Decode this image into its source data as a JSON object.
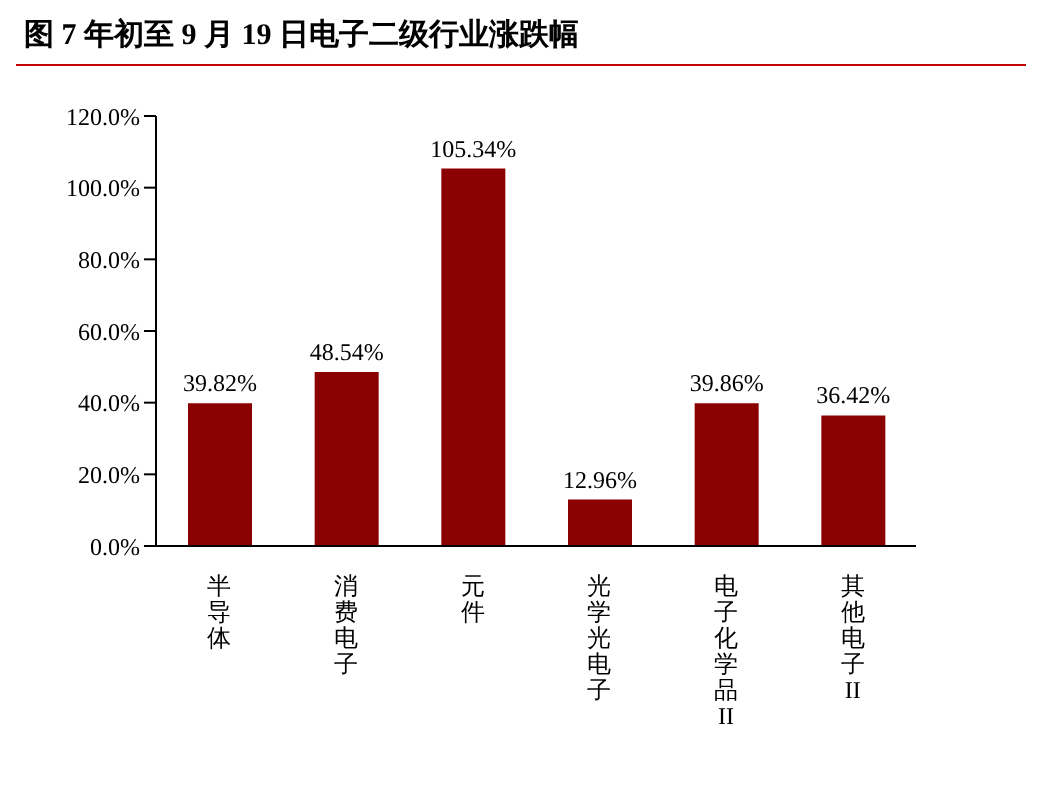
{
  "chart_data": {
    "type": "bar",
    "title": "图 7 年初至 9 月 19 日电子二级行业涨跌幅",
    "categories": [
      "半导体",
      "消费电子",
      "元件",
      "光学光电子",
      "电子化学品II",
      "其他电子II"
    ],
    "values": [
      39.82,
      48.54,
      105.34,
      12.96,
      39.86,
      36.42
    ],
    "value_labels": [
      "39.82%",
      "48.54%",
      "105.34%",
      "12.96%",
      "39.86%",
      "36.42%"
    ],
    "color": "#8b0000",
    "ylim": [
      0,
      120
    ],
    "yticks": [
      {
        "value": 0,
        "label": "0.0%"
      },
      {
        "value": 20,
        "label": "20.0%"
      },
      {
        "value": 40,
        "label": "40.0%"
      },
      {
        "value": 60,
        "label": "60.0%"
      },
      {
        "value": 80,
        "label": "80.0%"
      },
      {
        "value": 100,
        "label": "100.0%"
      },
      {
        "value": 120,
        "label": "120.0%"
      }
    ],
    "grid": false
  }
}
